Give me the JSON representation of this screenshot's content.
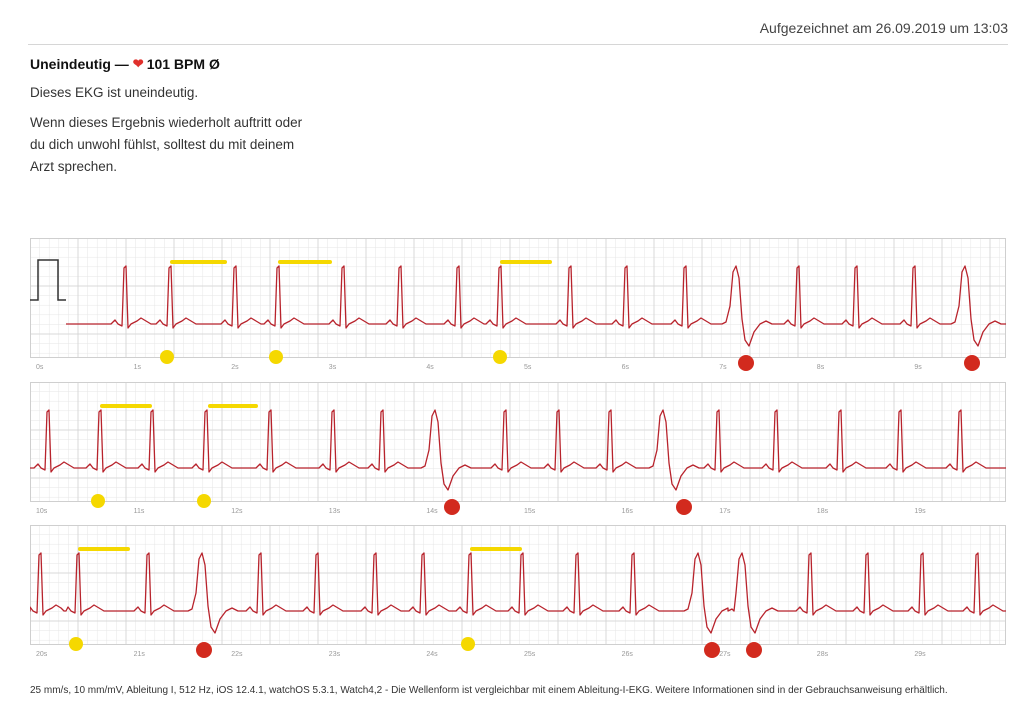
{
  "header": {
    "recorded_at": "Aufgezeichnet am 26.09.2019 um 13:03"
  },
  "summary": {
    "classification": "Uneindeutig —",
    "heart_icon": "heart-icon",
    "bpm": "101 BPM",
    "average_symbol": "Ø",
    "result_text": "Dieses EKG ist uneindeutig.",
    "advice_text": "Wenn dieses Ergebnis wiederholt auftritt oder du dich unwohl fühlst, solltest du mit deinem Arzt sprechen."
  },
  "ecg": {
    "trace_color": "#b8232c",
    "grid_color": "#e6e6e6",
    "annotation_yellow": "#f5d800",
    "annotation_red": "#d22a1e",
    "strips": [
      {
        "time_labels": [
          "0s",
          "1s",
          "2s",
          "3s",
          "4s",
          "5s",
          "6s",
          "7s",
          "8s",
          "9s"
        ]
      },
      {
        "time_labels": [
          "10s",
          "11s",
          "12s",
          "13s",
          "14s",
          "15s",
          "16s",
          "17s",
          "18s",
          "19s"
        ]
      },
      {
        "time_labels": [
          "20s",
          "21s",
          "22s",
          "23s",
          "24s",
          "25s",
          "26s",
          "27s",
          "28s",
          "29s"
        ]
      }
    ]
  },
  "footer": {
    "text": "25 mm/s, 10 mm/mV, Ableitung I, 512 Hz, iOS 12.4.1, watchOS 5.3.1, Watch4,2 - Die Wellenform ist vergleichbar mit einem Ableitung-I-EKG. Weitere Informationen sind in der Gebrauchsanweisung erhältlich."
  }
}
